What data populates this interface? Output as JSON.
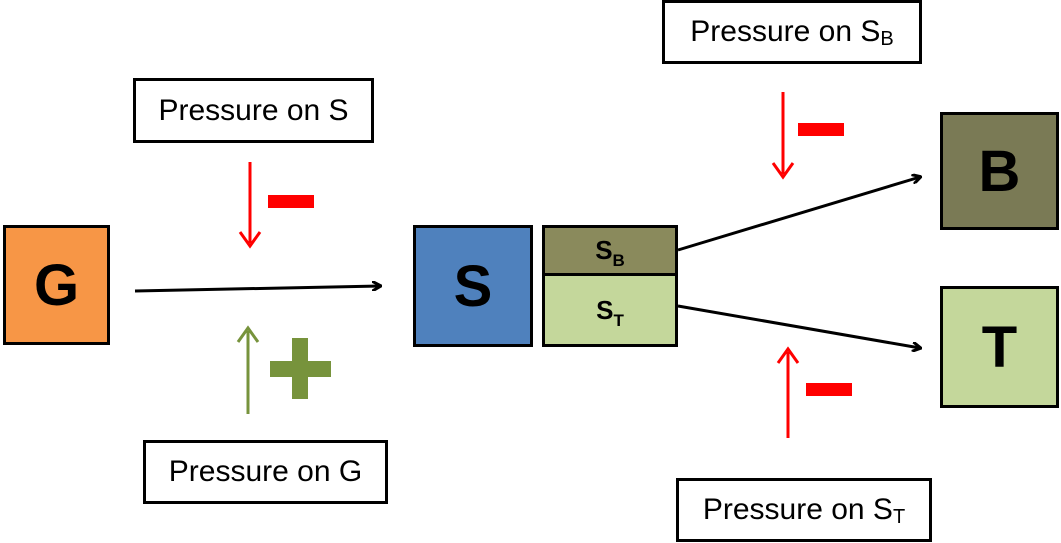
{
  "nodes": {
    "g": {
      "label": "G",
      "color": "#f79646"
    },
    "s": {
      "label": "S",
      "color": "#4f81bd"
    },
    "sb": {
      "label": "S",
      "sub": "B",
      "color": "#8a8a5c"
    },
    "st": {
      "label": "S",
      "sub": "T",
      "color": "#c4d79b"
    },
    "b": {
      "label": "B",
      "color": "#7a7a55"
    },
    "t": {
      "label": "T",
      "color": "#c4d79b"
    }
  },
  "pressures": {
    "on_s": {
      "text": "Pressure on S",
      "effect": "−"
    },
    "on_g": {
      "text": "Pressure on G",
      "effect": "+"
    },
    "on_sb": {
      "text": "Pressure on S",
      "sub": "B",
      "effect": "−"
    },
    "on_st": {
      "text": "Pressure on S",
      "sub": "T",
      "effect": "−"
    }
  },
  "colors": {
    "negative": "#ff0000",
    "positive": "#77933c",
    "arrow": "#000000"
  }
}
